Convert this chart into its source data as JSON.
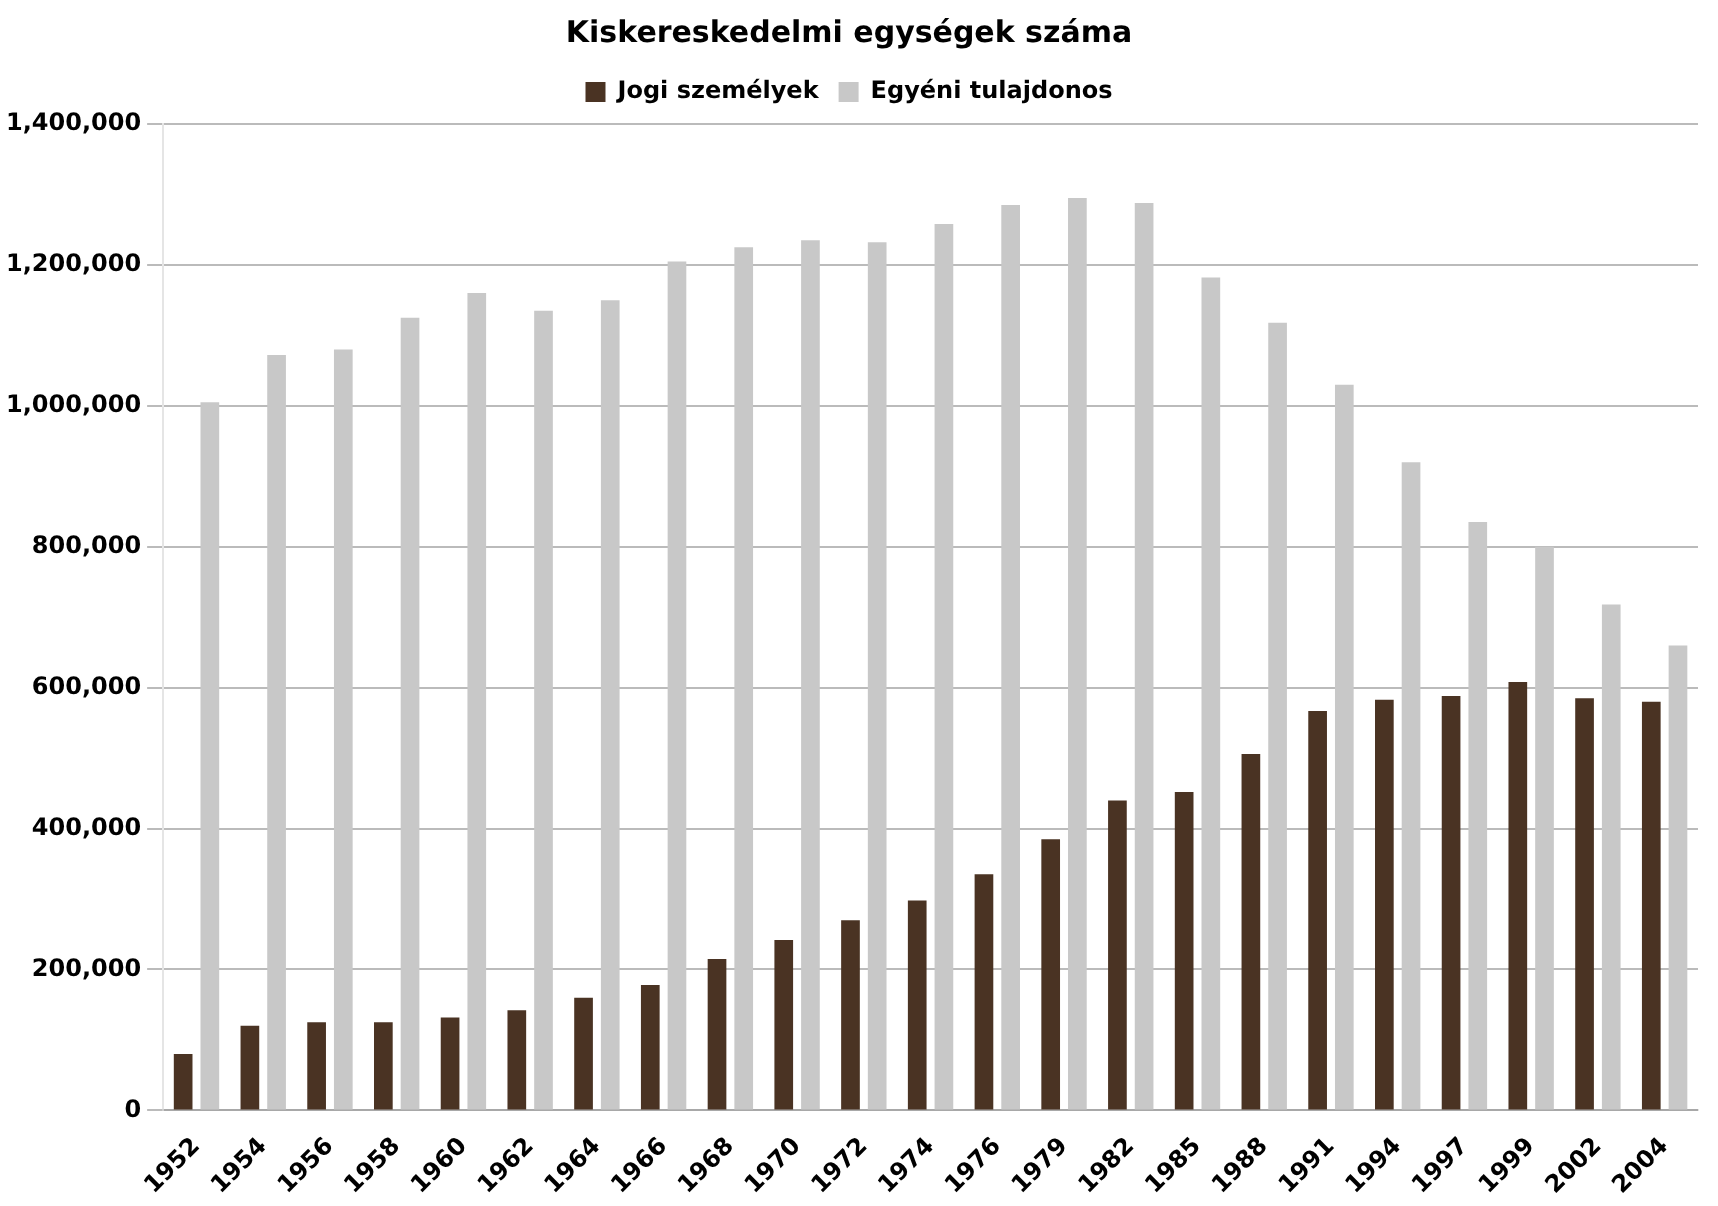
{
  "chart_data": {
    "type": "bar",
    "title": "Kiskereskedelmi egységek száma",
    "categories": [
      "1952",
      "1954",
      "1956",
      "1958",
      "1960",
      "1962",
      "1964",
      "1966",
      "1968",
      "1970",
      "1972",
      "1974",
      "1976",
      "1979",
      "1982",
      "1985",
      "1988",
      "1991",
      "1994",
      "1997",
      "1999",
      "2002",
      "2004"
    ],
    "series": [
      {
        "name": "Jogi személyek",
        "color": "#4a3323",
        "values": [
          80000,
          120000,
          125000,
          125000,
          132000,
          142000,
          160000,
          178000,
          215000,
          242000,
          270000,
          298000,
          335000,
          385000,
          440000,
          452000,
          506000,
          567000,
          583000,
          588000,
          608000,
          585000,
          580000
        ]
      },
      {
        "name": "Egyéni tulajdonos",
        "color": "#c8c8c8",
        "values": [
          1005000,
          1072000,
          1080000,
          1125000,
          1160000,
          1135000,
          1150000,
          1205000,
          1225000,
          1235000,
          1232000,
          1258000,
          1285000,
          1295000,
          1288000,
          1182000,
          1118000,
          1030000,
          920000,
          835000,
          800000,
          718000,
          660000
        ]
      }
    ],
    "ylim": [
      0,
      1400000
    ],
    "yticks": [
      0,
      {
        "value": 200000,
        "label": "200,000"
      },
      {
        "value": 400000,
        "label": "400,000"
      },
      {
        "value": 600000,
        "label": "600,000"
      },
      {
        "value": 800000,
        "label": "800,000"
      },
      {
        "value": 1000000,
        "label": "1,000,000"
      },
      {
        "value": 1200000,
        "label": "1,200,000"
      },
      {
        "value": 1400000,
        "label": "1,400,000"
      }
    ],
    "grid": "y",
    "legend": "top"
  }
}
